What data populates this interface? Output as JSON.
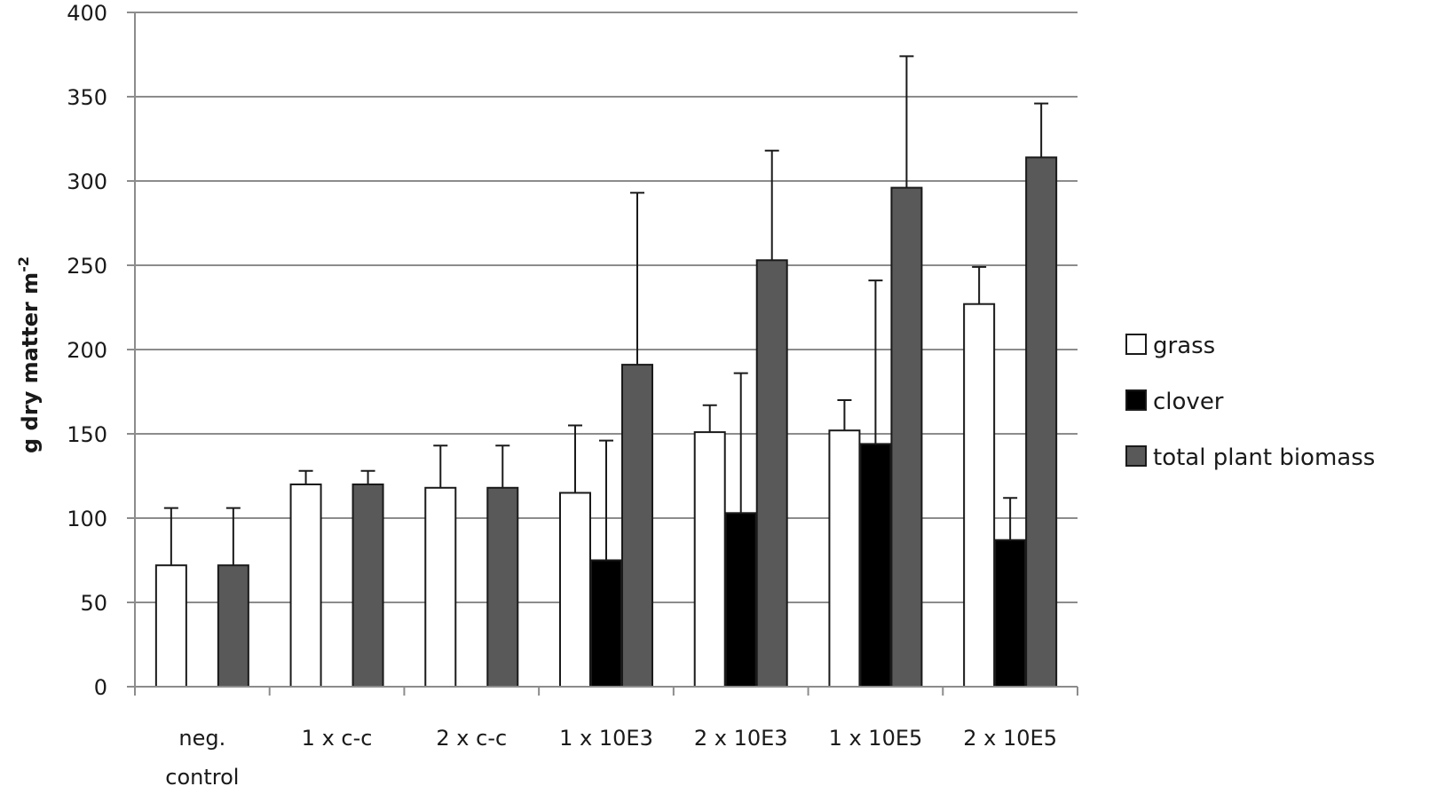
{
  "chart_data": {
    "type": "bar",
    "title": "",
    "xlabel": "",
    "ylabel": "g dry matter m",
    "ylabel_superscript": "-2",
    "ylim": [
      0,
      400
    ],
    "yticks": [
      0,
      50,
      100,
      150,
      200,
      250,
      300,
      350,
      400
    ],
    "grid": true,
    "legend_position": "right",
    "categories": [
      [
        "neg.",
        "control"
      ],
      [
        "1 x c-c"
      ],
      [
        "2 x c-c"
      ],
      [
        "1 x 10E3"
      ],
      [
        "2 x 10E3"
      ],
      [
        "1 x 10E5"
      ],
      [
        "2 x 10E5"
      ]
    ],
    "series": [
      {
        "name": "grass",
        "color": "#ffffff",
        "values": [
          72,
          120,
          118,
          115,
          151,
          152,
          227
        ],
        "error_upper": [
          106,
          128,
          143,
          155,
          167,
          170,
          249
        ]
      },
      {
        "name": "clover",
        "color": "#000000",
        "values": [
          0,
          0,
          0,
          75,
          103,
          144,
          87
        ],
        "error_upper": [
          null,
          null,
          null,
          146,
          186,
          241,
          112
        ]
      },
      {
        "name": "total plant biomass",
        "color": "#595959",
        "values": [
          72,
          120,
          118,
          191,
          253,
          296,
          314
        ],
        "error_upper": [
          106,
          128,
          143,
          293,
          318,
          374,
          346
        ]
      }
    ]
  }
}
